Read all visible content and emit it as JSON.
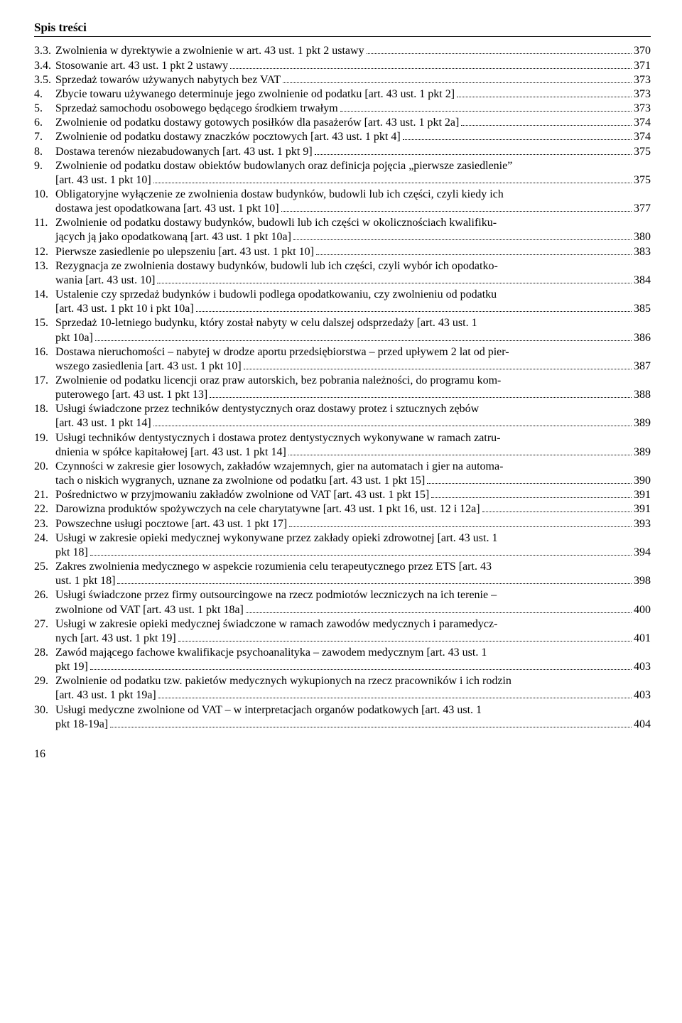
{
  "header": "Spis treści",
  "page_number": "16",
  "entries": [
    {
      "num": "3.3.",
      "lines": [
        "Zwolnienia w dyrektywie a zwolnienie w art. 43 ust. 1 pkt 2 ustawy"
      ],
      "page": "370"
    },
    {
      "num": "3.4.",
      "lines": [
        "Stosowanie art. 43 ust. 1 pkt 2 ustawy"
      ],
      "page": "371"
    },
    {
      "num": "3.5.",
      "lines": [
        "Sprzedaż towarów używanych nabytych bez VAT"
      ],
      "page": "373"
    },
    {
      "num": "4.",
      "lines": [
        "Zbycie towaru używanego determinuje jego zwolnienie od podatku [art. 43 ust. 1 pkt 2]"
      ],
      "page": "373"
    },
    {
      "num": "5.",
      "lines": [
        "Sprzedaż samochodu osobowego będącego środkiem trwałym"
      ],
      "page": "373"
    },
    {
      "num": "6.",
      "lines": [
        "Zwolnienie od podatku dostawy gotowych posiłków dla pasażerów [art. 43 ust. 1 pkt 2a]"
      ],
      "page": "374"
    },
    {
      "num": "7.",
      "lines": [
        "Zwolnienie od podatku dostawy znaczków pocztowych [art. 43 ust. 1 pkt 4]"
      ],
      "page": "374"
    },
    {
      "num": "8.",
      "lines": [
        "Dostawa terenów niezabudowanych [art. 43 ust. 1 pkt 9]"
      ],
      "page": "375"
    },
    {
      "num": "9.",
      "lines": [
        "Zwolnienie od podatku dostaw obiektów budowlanych oraz definicja pojęcia „pierwsze zasiedlenie”",
        "[art. 43 ust. 1 pkt 10]"
      ],
      "page": "375"
    },
    {
      "num": "10.",
      "lines": [
        "Obligatoryjne wyłączenie ze zwolnienia dostaw budynków, budowli lub ich części, czyli kiedy ich",
        "dostawa jest opodatkowana [art. 43 ust. 1 pkt 10]"
      ],
      "page": "377"
    },
    {
      "num": "11.",
      "lines": [
        "Zwolnienie od podatku dostawy budynków, budowli lub ich części w okolicznościach kwalifiku-",
        "jących ją jako opodatkowaną [art. 43 ust. 1 pkt 10a]"
      ],
      "page": "380"
    },
    {
      "num": "12.",
      "lines": [
        "Pierwsze zasiedlenie po ulepszeniu [art. 43 ust. 1 pkt 10]"
      ],
      "page": "383"
    },
    {
      "num": "13.",
      "lines": [
        "Rezygnacja ze zwolnienia dostawy budynków, budowli lub ich części, czyli wybór ich opodatko-",
        "wania [art. 43 ust. 10]"
      ],
      "page": "384"
    },
    {
      "num": "14.",
      "lines": [
        "Ustalenie czy sprzedaż budynków i budowli podlega opodatkowaniu, czy zwolnieniu od podatku",
        "[art. 43 ust. 1 pkt 10 i pkt 10a]"
      ],
      "page": "385"
    },
    {
      "num": "15.",
      "lines": [
        "Sprzedaż 10-letniego budynku, który został nabyty w celu dalszej odsprzedaży [art. 43 ust. 1",
        "pkt 10a]"
      ],
      "page": "386"
    },
    {
      "num": "16.",
      "lines": [
        "Dostawa nieruchomości – nabytej w drodze aportu przedsiębiorstwa – przed upływem 2 lat od pier-",
        "wszego zasiedlenia [art. 43 ust. 1 pkt 10]"
      ],
      "page": "387"
    },
    {
      "num": "17.",
      "lines": [
        "Zwolnienie od podatku licencji oraz praw autorskich, bez pobrania należności, do programu kom-",
        "puterowego [art. 43 ust. 1 pkt 13]"
      ],
      "page": "388"
    },
    {
      "num": "18.",
      "lines": [
        "Usługi świadczone przez techników dentystycznych oraz dostawy protez i sztucznych zębów",
        "[art. 43 ust. 1 pkt 14]"
      ],
      "page": "389"
    },
    {
      "num": "19.",
      "lines": [
        "Usługi techników dentystycznych i dostawa protez dentystycznych wykonywane w ramach zatru-",
        "dnienia w spółce kapitałowej [art. 43 ust. 1 pkt 14]"
      ],
      "page": "389"
    },
    {
      "num": "20.",
      "lines": [
        "Czynności w zakresie gier losowych, zakładów wzajemnych, gier na automatach i gier na automa-",
        "tach o niskich wygranych, uznane za zwolnione od podatku [art. 43 ust. 1 pkt 15]"
      ],
      "page": "390"
    },
    {
      "num": "21.",
      "lines": [
        "Pośrednictwo w przyjmowaniu zakładów zwolnione od VAT [art. 43 ust. 1 pkt 15]"
      ],
      "page": "391"
    },
    {
      "num": "22.",
      "lines": [
        "Darowizna produktów spożywczych na cele charytatywne [art. 43 ust. 1 pkt 16, ust. 12 i 12a]"
      ],
      "page": "391"
    },
    {
      "num": "23.",
      "lines": [
        "Powszechne usługi pocztowe [art. 43 ust. 1 pkt 17]"
      ],
      "page": "393"
    },
    {
      "num": "24.",
      "lines": [
        "Usługi w zakresie opieki medycznej wykonywane przez zakłady opieki zdrowotnej [art. 43 ust. 1",
        "pkt 18]"
      ],
      "page": "394"
    },
    {
      "num": "25.",
      "lines": [
        "Zakres zwolnienia medycznego w aspekcie rozumienia celu terapeutycznego przez ETS [art. 43",
        "ust. 1 pkt 18]"
      ],
      "page": "398"
    },
    {
      "num": "26.",
      "lines": [
        "Usługi świadczone przez firmy outsourcingowe na rzecz podmiotów leczniczych na ich terenie –",
        "zwolnione od VAT [art. 43 ust. 1 pkt 18a]"
      ],
      "page": "400"
    },
    {
      "num": "27.",
      "lines": [
        "Usługi w zakresie opieki medycznej świadczone w ramach zawodów medycznych i paramedycz-",
        "nych [art. 43 ust. 1 pkt 19]"
      ],
      "page": "401"
    },
    {
      "num": "28.",
      "lines": [
        "Zawód mającego fachowe kwalifikacje psychoanalityka – zawodem medycznym [art. 43 ust. 1",
        "pkt 19]"
      ],
      "page": "403"
    },
    {
      "num": "29.",
      "lines": [
        "Zwolnienie od podatku tzw. pakietów medycznych wykupionych na rzecz pracowników i ich rodzin",
        "[art. 43 ust. 1 pkt 19a]"
      ],
      "page": "403"
    },
    {
      "num": "30.",
      "lines": [
        "Usługi medyczne zwolnione od VAT – w interpretacjach organów podatkowych [art. 43 ust. 1",
        "pkt 18-19a]"
      ],
      "page": "404"
    }
  ]
}
